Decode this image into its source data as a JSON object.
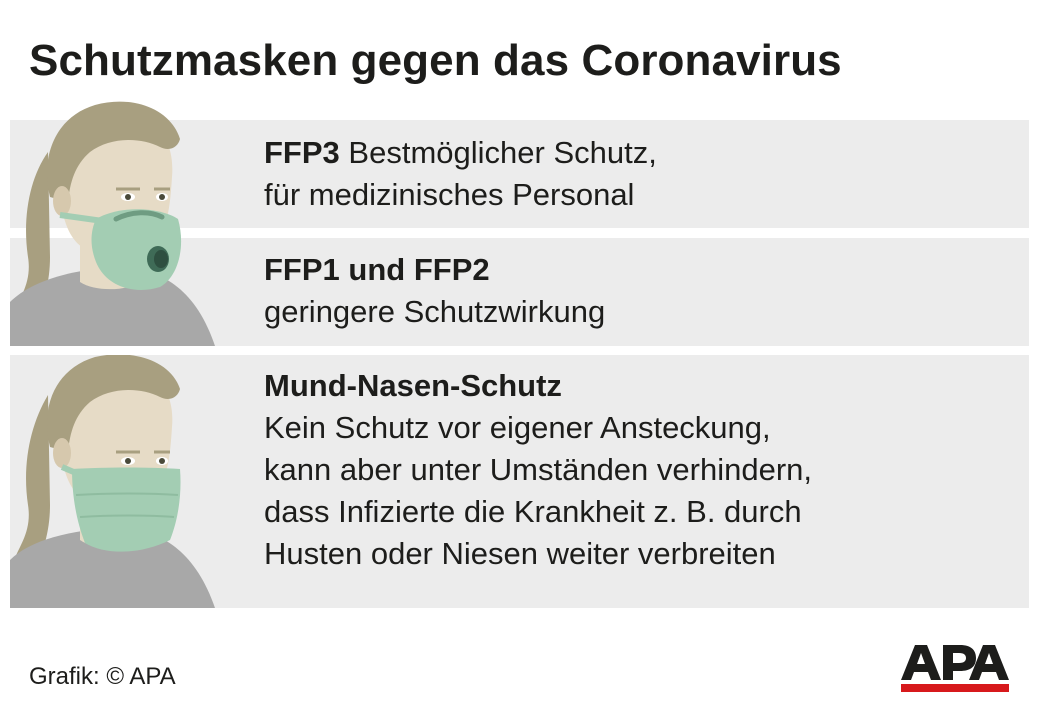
{
  "title": "Schutzmasken gegen das Coronavirus",
  "items": [
    {
      "heading": "FFP3",
      "lines": [
        "Bestmöglicher Schutz,",
        "für medizinisches Personal"
      ]
    },
    {
      "heading": "FFP1 und FFP2",
      "lines": [
        "geringere Schutzwirkung"
      ]
    },
    {
      "heading": "Mund-Nasen-Schutz",
      "lines": [
        "Kein Schutz vor eigener Ansteckung,",
        "kann aber unter Umständen verhindern,",
        "dass Infizierte die Krankheit z. B. durch",
        "Husten oder Niesen weiter verbreiten"
      ]
    }
  ],
  "footer": "Grafik: © APA",
  "logo_text": "APA",
  "colors": {
    "band": "#ececec",
    "hair": "#a89f80",
    "skin": "#e6dbc6",
    "shirt": "#a8a8a8",
    "mask": "#a3cdb3",
    "valve": "#3f6b57",
    "logo_black": "#1d1d1b",
    "logo_red": "#d7191c"
  },
  "icons": [
    "person-ffp-mask-icon",
    "person-surgical-mask-icon",
    "apa-logo"
  ]
}
